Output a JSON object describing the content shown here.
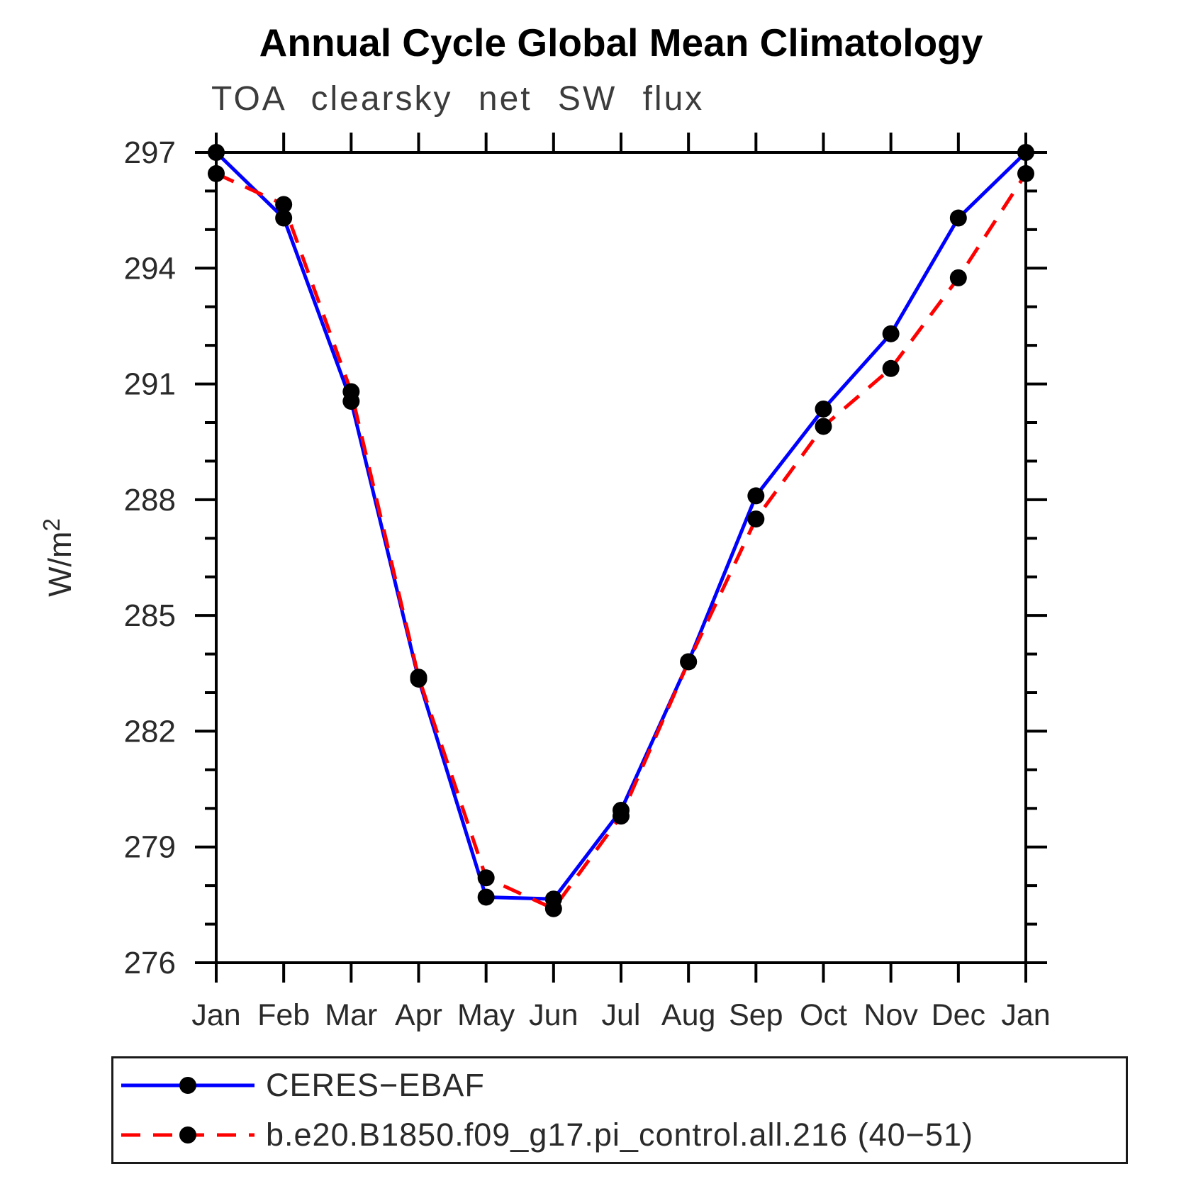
{
  "chart_data": {
    "type": "line",
    "title": "Annual Cycle Global Mean Climatology",
    "subtitle": "TOA clearsky net SW flux",
    "ylabel_base": "W/m",
    "ylabel_sup": "2",
    "categories": [
      "Jan",
      "Feb",
      "Mar",
      "Apr",
      "May",
      "Jun",
      "Jul",
      "Aug",
      "Sep",
      "Oct",
      "Nov",
      "Dec",
      "Jan"
    ],
    "series": [
      {
        "name": "CERES−EBAF",
        "color": "#0000ff",
        "style": "solid",
        "values": [
          297.0,
          295.3,
          290.55,
          283.35,
          277.7,
          277.65,
          279.95,
          283.8,
          288.1,
          290.35,
          292.3,
          295.3,
          297.0
        ]
      },
      {
        "name": "b.e20.B1850.f09_g17.pi_control.all.216 (40−51)",
        "color": "#ff0000",
        "style": "dashed",
        "values": [
          296.45,
          295.65,
          290.8,
          283.4,
          278.2,
          277.4,
          279.8,
          283.8,
          287.5,
          289.9,
          291.4,
          293.75,
          296.45
        ]
      }
    ],
    "ylim": [
      276,
      297
    ],
    "ytick_major": 3,
    "ytick_minor": 1,
    "yticks_labeled": [
      276,
      279,
      282,
      285,
      288,
      291,
      294,
      297
    ],
    "grid": false,
    "legend_position": "bottom",
    "marker": "filled-circle",
    "marker_color": "#000000",
    "frame_color": "#000000"
  }
}
